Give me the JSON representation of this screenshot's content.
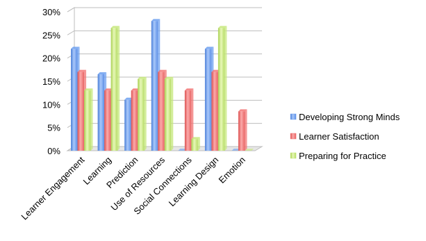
{
  "chart_data": {
    "type": "bar",
    "title": "",
    "xlabel": "",
    "ylabel": "",
    "categories": [
      "Learner Engagement",
      "Learning",
      "Prediction",
      "Use of Resources",
      "Social Connections",
      "Learning Design",
      "Emotion"
    ],
    "series": [
      {
        "name": "Developing Strong Minds",
        "color": "#6b9ff0",
        "values": [
          22,
          16.5,
          11,
          28,
          0,
          22,
          0
        ]
      },
      {
        "name": "Learner Satisfaction",
        "color": "#f27474",
        "values": [
          17,
          13,
          13,
          17,
          13,
          17,
          8.5
        ]
      },
      {
        "name": "Preparing for Practice",
        "color": "#c6e87a",
        "values": [
          13,
          26.5,
          15.5,
          15.5,
          2.5,
          26.5,
          0
        ]
      }
    ],
    "ylim": [
      0,
      30
    ],
    "yticks": [
      "0%",
      "5%",
      "10%",
      "15%",
      "20%",
      "25%",
      "30%"
    ],
    "grid": true,
    "legend_position": "right"
  }
}
